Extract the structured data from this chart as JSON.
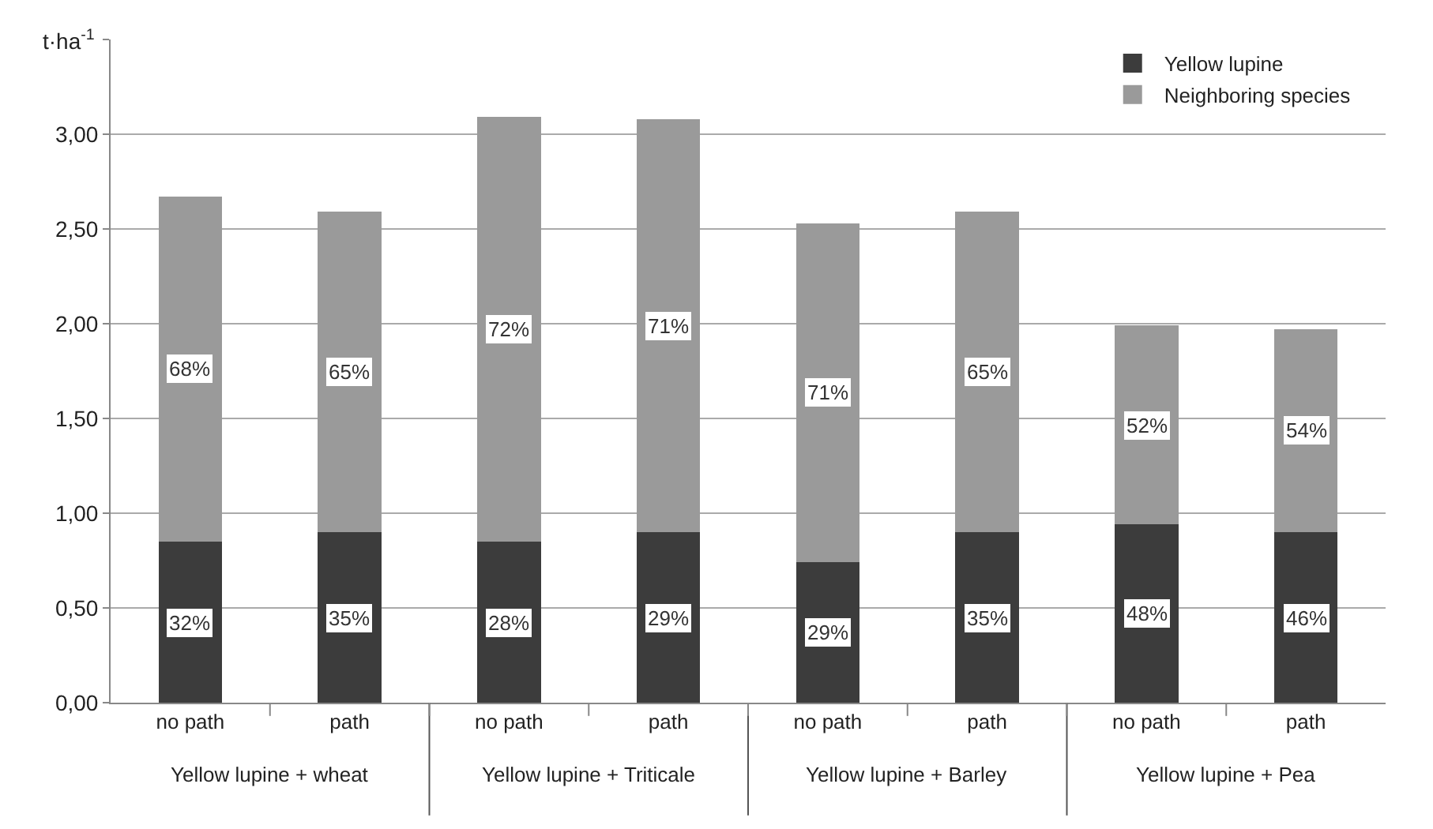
{
  "chart_data": {
    "type": "bar",
    "stacked": true,
    "categories": [
      "no path",
      "path",
      "no path",
      "path",
      "no path",
      "path",
      "no path",
      "path"
    ],
    "series": [
      {
        "name": "Yellow lupine",
        "color": "#3c3c3c",
        "values": [
          0.85,
          0.9,
          0.85,
          0.9,
          0.74,
          0.9,
          0.94,
          0.9
        ]
      },
      {
        "name": "Neighboring species",
        "color": "#9a9a9a",
        "values": [
          1.82,
          1.69,
          2.24,
          2.18,
          1.79,
          1.69,
          1.05,
          1.07
        ]
      }
    ],
    "ylabel": "t·ha$^{-1}$",
    "ylim": [
      0,
      3.5
    ],
    "yticks": [
      {
        "value": 0,
        "label": "0,00"
      },
      {
        "value": 0.5,
        "label": "0,50"
      },
      {
        "value": 1,
        "label": "1,00"
      },
      {
        "value": 1.5,
        "label": "1,50"
      },
      {
        "value": 2,
        "label": "2,00"
      },
      {
        "value": 2.5,
        "label": "2,50"
      },
      {
        "value": 3,
        "label": "3,00"
      },
      {
        "value": 3.5,
        "label": null
      }
    ],
    "annotations": [
      "Yellow lupine + wheat",
      "Yellow lupine + Triticale",
      "Yellow lupine + Barley",
      "Yellow lupine + Pea",
      "32%",
      "35%",
      "28%",
      "29%",
      "29%",
      "35%",
      "48%",
      "46%",
      "68%",
      "65%",
      "72%",
      "71%",
      "71%",
      "65%",
      "52%",
      "54%"
    ],
    "grid": "y",
    "legend": "top right"
  }
}
